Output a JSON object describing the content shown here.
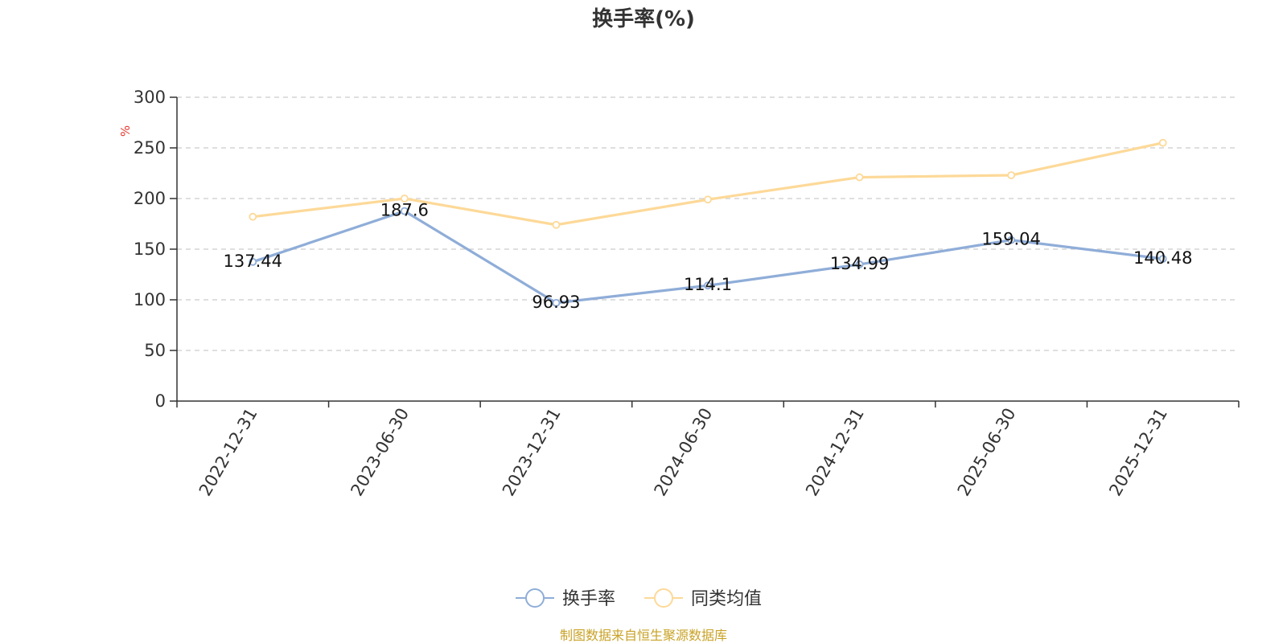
{
  "chart_data": {
    "type": "line",
    "title": "换手率(%)",
    "ylabel": "%",
    "xlabel": "",
    "categories": [
      "2022-12-31",
      "2023-06-30",
      "2023-12-31",
      "2024-06-30",
      "2024-12-31",
      "2025-06-30",
      "2025-12-31"
    ],
    "ylim": [
      0,
      300
    ],
    "yticks": [
      0,
      50,
      100,
      150,
      200,
      250,
      300
    ],
    "grid": true,
    "legend_position": "bottom-center",
    "series": [
      {
        "name": "换手率",
        "color": "#8fadd8",
        "values": [
          137.44,
          187.6,
          96.93,
          114.1,
          134.99,
          159.04,
          140.48
        ],
        "labels": [
          "137.44",
          "187.6",
          "96.93",
          "114.1",
          "134.99",
          "159.04",
          "140.48"
        ]
      },
      {
        "name": "同类均值",
        "color": "#fdd998",
        "values": [
          182,
          200,
          174,
          199,
          221,
          223,
          255
        ]
      }
    ]
  },
  "unit_color": "#e8382f",
  "source": {
    "text": "制图数据来自恒生聚源数据库",
    "color": "#c9a227"
  }
}
